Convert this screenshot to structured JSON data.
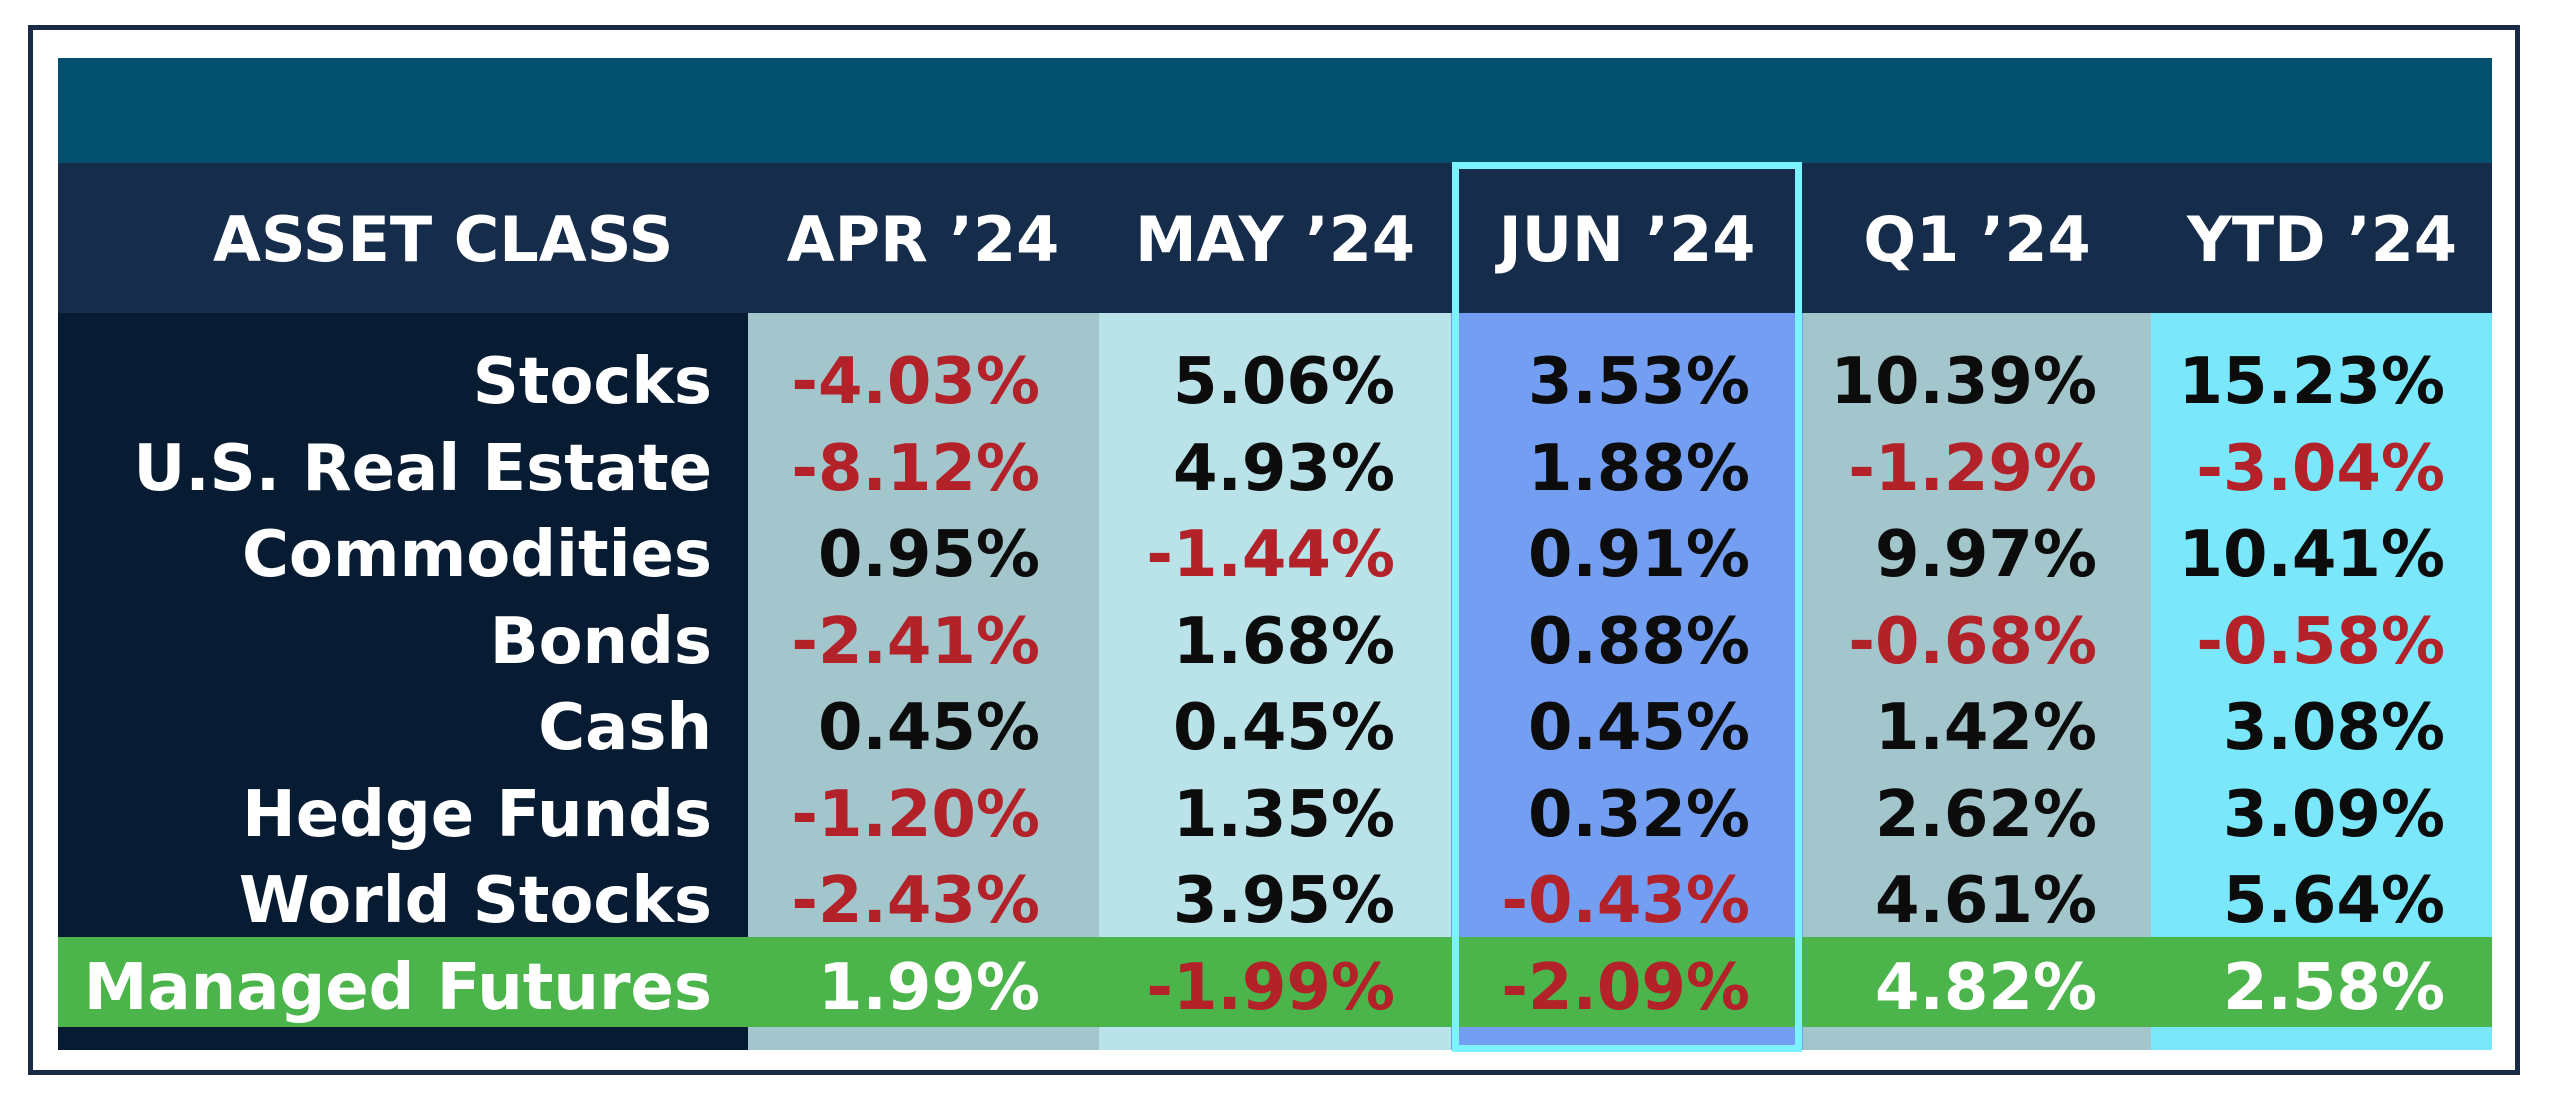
{
  "chart_data": {
    "type": "table",
    "columns": [
      "ASSET CLASS",
      "APR ’24",
      "MAY ’24",
      "JUN ’24",
      "Q1 ’24",
      "YTD ’24"
    ],
    "highlighted_column": "JUN ’24",
    "rows": [
      {
        "asset": "Stocks",
        "values": [
          "-4.03%",
          "5.06%",
          "3.53%",
          "10.39%",
          "15.23%"
        ]
      },
      {
        "asset": "U.S. Real Estate",
        "values": [
          "-8.12%",
          "4.93%",
          "1.88%",
          "-1.29%",
          "-3.04%"
        ]
      },
      {
        "asset": "Commodities",
        "values": [
          "0.95%",
          "-1.44%",
          "0.91%",
          "9.97%",
          "10.41%"
        ]
      },
      {
        "asset": "Bonds",
        "values": [
          "-2.41%",
          "1.68%",
          "0.88%",
          "-0.68%",
          "-0.58%"
        ]
      },
      {
        "asset": "Cash",
        "values": [
          "0.45%",
          "0.45%",
          "0.45%",
          "1.42%",
          "3.08%"
        ]
      },
      {
        "asset": "Hedge Funds",
        "values": [
          "-1.20%",
          "1.35%",
          "0.32%",
          "2.62%",
          "3.09%"
        ]
      },
      {
        "asset": "World Stocks",
        "values": [
          "-2.43%",
          "3.95%",
          "-0.43%",
          "4.61%",
          "5.64%"
        ]
      },
      {
        "asset": "Managed Futures",
        "values": [
          "1.99%",
          "-1.99%",
          "-2.09%",
          "4.82%",
          "2.58%"
        ]
      }
    ],
    "highlighted_row": "Managed Futures"
  },
  "colors": {
    "banner": "#02506e",
    "header": "#162c4b",
    "asset_column": "#071c33",
    "apr_column": "#a3c6cc",
    "may_column": "#b9e2e9",
    "jun_column": "#739ef2",
    "q1_column": "#a3c6cc",
    "ytd_column": "#7ae8fa",
    "managed_futures_row": "#4bb44a",
    "jun_outline": "#7cf2ff",
    "negative_text": "#b32129"
  }
}
